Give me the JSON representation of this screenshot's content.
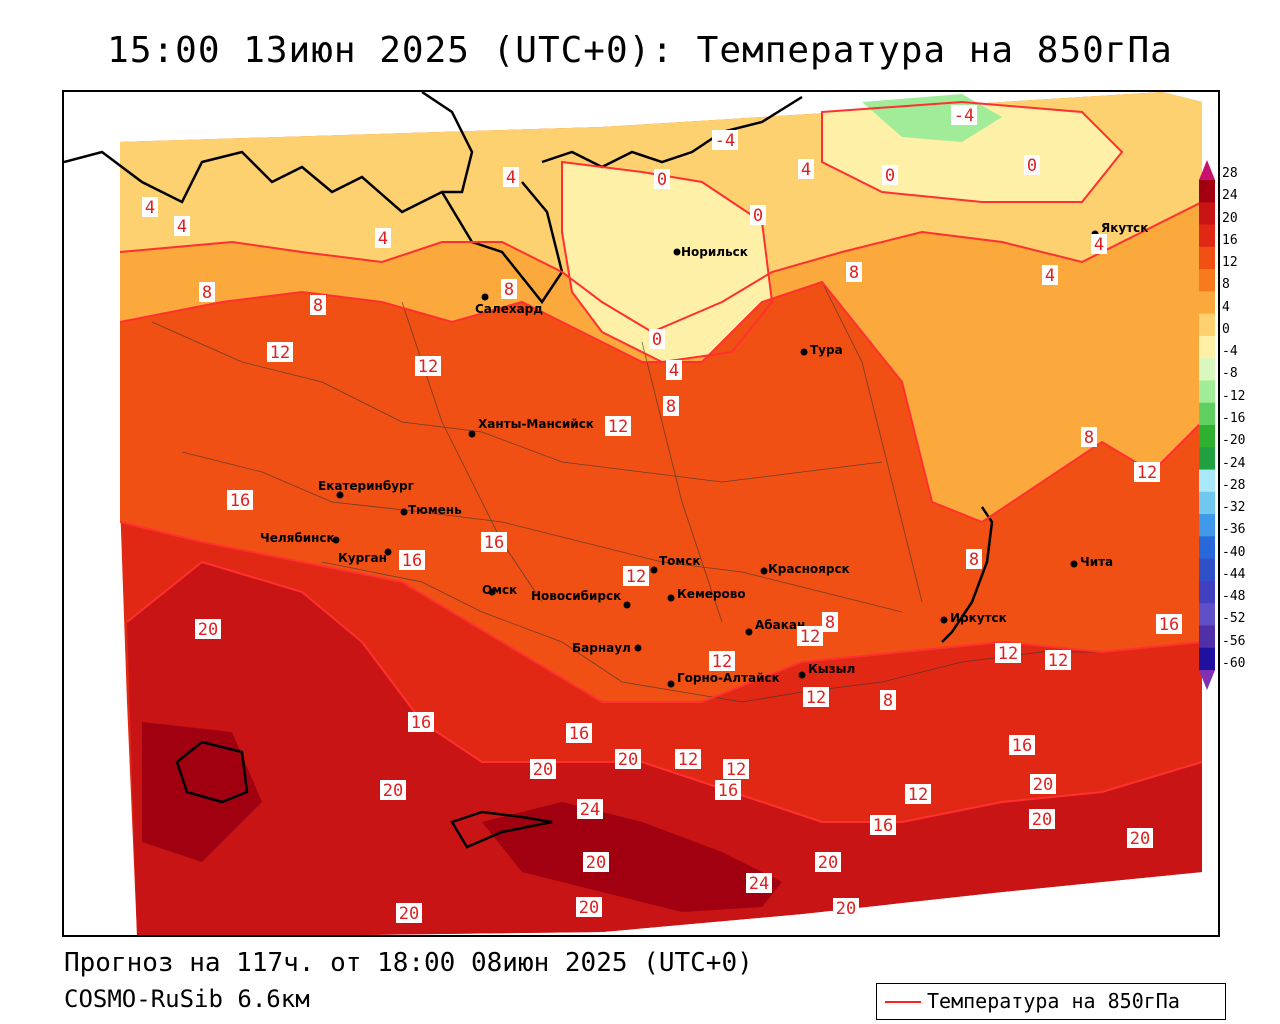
{
  "title": "15:00 13июн 2025 (UTC+0): Температура на 850гПа",
  "footer": {
    "forecast": "Прогноз на 117ч. от 18:00 08июн 2025 (UTC+0)",
    "model": "COSMO-RuSib 6.6км"
  },
  "legend": {
    "label": "Температура на 850гПа",
    "line_color": "#ff2020"
  },
  "colorbar": {
    "ticks": [
      "28",
      "24",
      "20",
      "16",
      "12",
      "8",
      "4",
      "0",
      "-4",
      "-8",
      "-12",
      "-16",
      "-20",
      "-24",
      "-28",
      "-32",
      "-36",
      "-40",
      "-44",
      "-48",
      "-52",
      "-56",
      "-60"
    ],
    "colors": [
      "#c8106e",
      "#a00010",
      "#c81414",
      "#e02814",
      "#f05014",
      "#f87a1e",
      "#fba83c",
      "#fdd070",
      "#fff0a8",
      "#d8f8c0",
      "#a0ec98",
      "#60d060",
      "#30b030",
      "#20a040",
      "#a8e8f8",
      "#70c8f0",
      "#4098e8",
      "#2868d8",
      "#3050c8",
      "#4040c0",
      "#6050c8",
      "#5030a8",
      "#2010a0",
      "#8030b0"
    ]
  },
  "cities": [
    {
      "name": "Норильск"
    },
    {
      "name": "Якутск"
    },
    {
      "name": "Салехард"
    },
    {
      "name": "Тура"
    },
    {
      "name": "Ханты-Мансийск"
    },
    {
      "name": "Екатеринбург"
    },
    {
      "name": "Тюмень"
    },
    {
      "name": "Челябинск"
    },
    {
      "name": "Курган"
    },
    {
      "name": "Омск"
    },
    {
      "name": "Томск"
    },
    {
      "name": "Красноярск"
    },
    {
      "name": "Новосибирск"
    },
    {
      "name": "Кемерово"
    },
    {
      "name": "Абакан"
    },
    {
      "name": "Барнаул"
    },
    {
      "name": "Горно-Алтайск"
    },
    {
      "name": "Кызыл"
    },
    {
      "name": "Иркутск"
    },
    {
      "name": "Чита"
    }
  ],
  "isotherm_labels": [
    "-4",
    "-4",
    "0",
    "0",
    "0",
    "0",
    "0",
    "4",
    "4",
    "4",
    "4",
    "4",
    "4",
    "4",
    "4",
    "8",
    "8",
    "8",
    "8",
    "8",
    "8",
    "8",
    "8",
    "8",
    "12",
    "12",
    "12",
    "12",
    "12",
    "12",
    "12",
    "12",
    "12",
    "12",
    "12",
    "12",
    "12",
    "16",
    "16",
    "16",
    "16",
    "16",
    "16",
    "16",
    "16",
    "16",
    "20",
    "20",
    "20",
    "20",
    "20",
    "20",
    "20",
    "20",
    "20",
    "20",
    "20",
    "20",
    "24",
    "24"
  ]
}
